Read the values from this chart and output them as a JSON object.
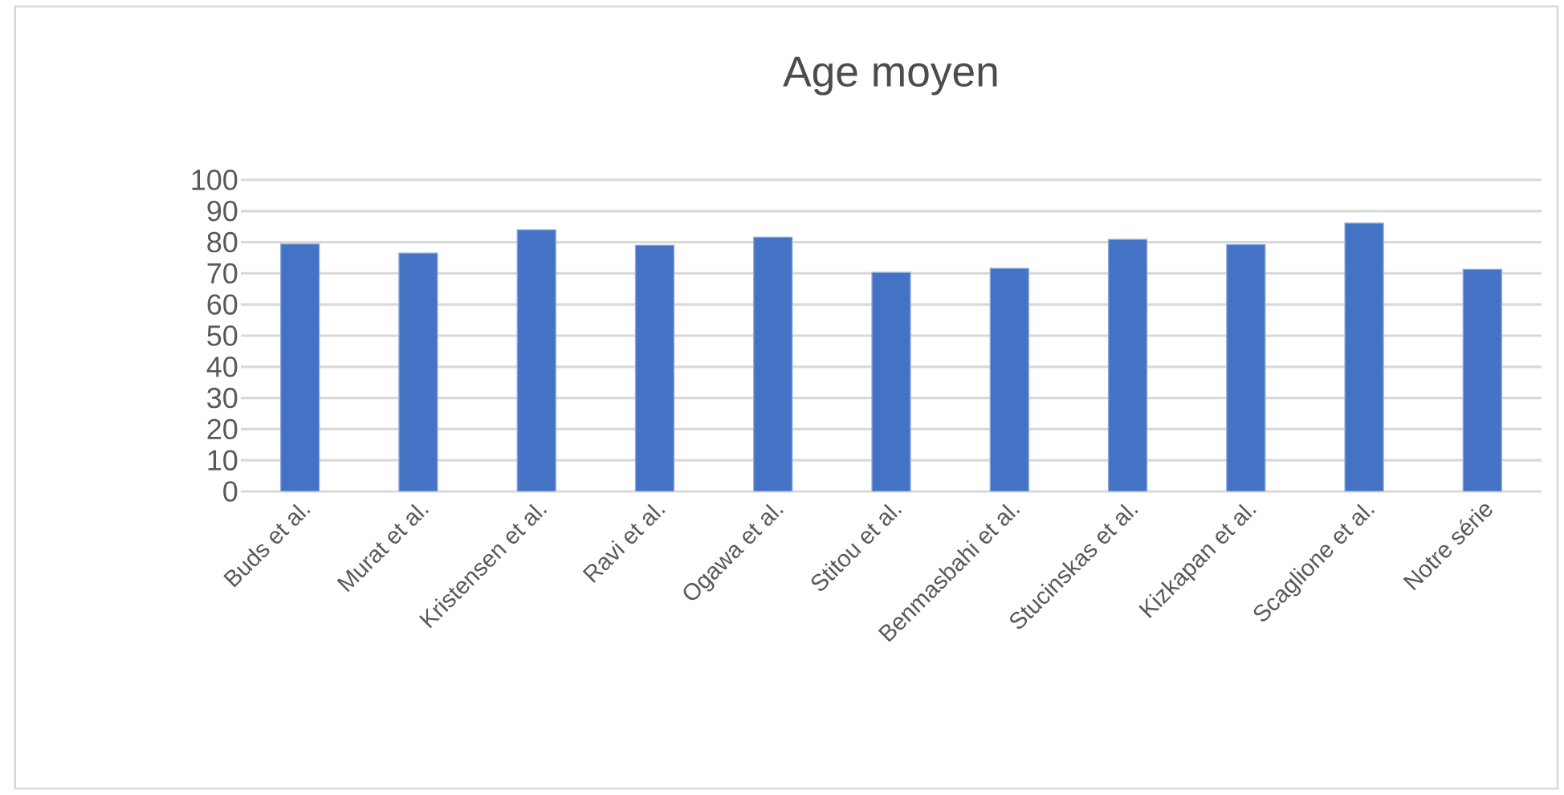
{
  "chart_data": {
    "type": "bar",
    "title": "Age moyen",
    "categories": [
      "Buds et al.",
      "Murat et al.",
      "Kristensen et al.",
      "Ravi et al.",
      "Ogawa et al.",
      "Stitou et al.",
      "Benmasbahi et al.",
      "Stucinskas et al.",
      "Kizkapan et al.",
      "Scaglione et al.",
      "Notre série"
    ],
    "values": [
      79.4,
      76.5,
      84.0,
      79.0,
      81.6,
      70.3,
      71.6,
      80.9,
      79.2,
      86.1,
      71.3
    ],
    "color": "#4472c4",
    "ylim": [
      0,
      100
    ],
    "yticks": [
      0,
      10,
      20,
      30,
      40,
      50,
      60,
      70,
      80,
      90,
      100
    ],
    "grid": "y"
  }
}
